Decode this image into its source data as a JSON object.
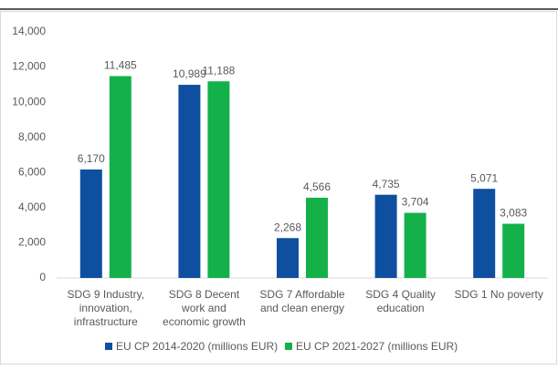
{
  "chart_data": {
    "type": "bar",
    "categories": [
      "SDG 9 Industry, innovation, infrastructure",
      "SDG 8 Decent work and economic growth",
      "SDG 7 Affordable and clean energy",
      "SDG 4 Quality education",
      "SDG 1 No poverty"
    ],
    "series": [
      {
        "name": "EU CP 2014-2020 (millions EUR)",
        "color": "#0f4fa0",
        "values": [
          6170,
          10989,
          2268,
          4735,
          5071
        ],
        "value_labels": [
          "6,170",
          "10,989",
          "2,268",
          "4,735",
          "5,071"
        ]
      },
      {
        "name": "EU CP 2021-2027 (millions EUR)",
        "color": "#14b14b",
        "values": [
          11485,
          11188,
          4566,
          3704,
          3083
        ],
        "value_labels": [
          "11,485",
          "11,188",
          "4,566",
          "3,704",
          "3,083"
        ]
      }
    ],
    "ylim": [
      0,
      14000
    ],
    "yticks": [
      0,
      {
        "value": 2000,
        "label": "2,000"
      },
      {
        "value": 4000,
        "label": "4,000"
      },
      {
        "value": 6000,
        "label": "6,000"
      },
      {
        "value": 8000,
        "label": "8,000"
      },
      {
        "value": 10000,
        "label": "10,000"
      },
      {
        "value": 12000,
        "label": "12,000"
      },
      {
        "value": 14000,
        "label": "14,000"
      }
    ],
    "legend": "bottom"
  }
}
